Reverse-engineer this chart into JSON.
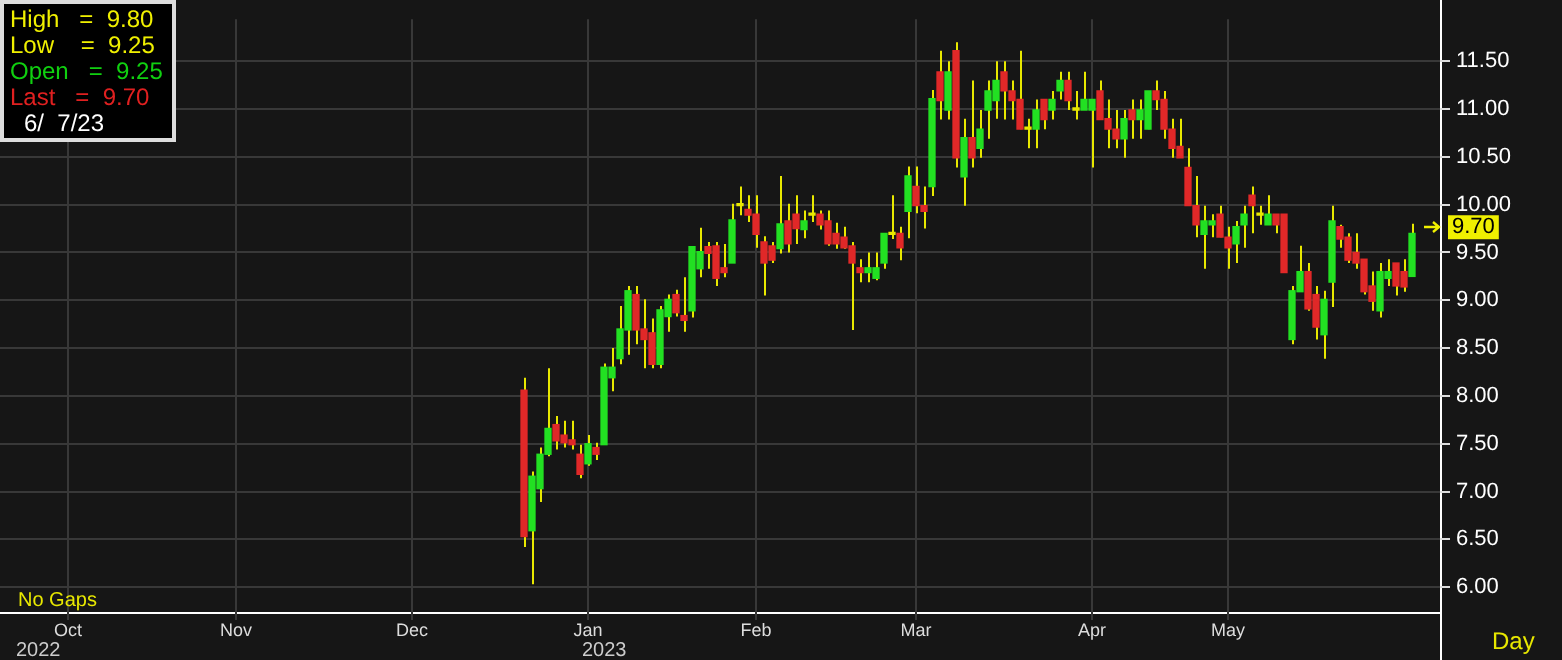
{
  "chart_data": {
    "type": "candlestick",
    "categories": [
      null,
      null,
      null,
      null,
      null,
      null,
      null,
      null,
      "Oct",
      null,
      null,
      null,
      null,
      null,
      null,
      null,
      null,
      null,
      null,
      null,
      null,
      null,
      null,
      null,
      null,
      null,
      null,
      null,
      null,
      "Nov",
      null,
      null,
      null,
      null,
      null,
      null,
      null,
      null,
      null,
      null,
      null,
      null,
      null,
      null,
      null,
      null,
      null,
      null,
      null,
      null,
      null,
      "Dec",
      null,
      null,
      null,
      null,
      null,
      null,
      null,
      null,
      null,
      null,
      null,
      null,
      null,
      null,
      null,
      null,
      null,
      null,
      null,
      null,
      null,
      "Jan",
      null,
      null,
      null,
      null,
      null,
      null,
      null,
      null,
      null,
      null,
      null,
      null,
      null,
      null,
      null,
      null,
      null,
      null,
      null,
      null,
      "Feb",
      null,
      null,
      null,
      null,
      null,
      null,
      null,
      null,
      null,
      null,
      null,
      null,
      null,
      null,
      null,
      null,
      null,
      null,
      null,
      "Mar",
      null,
      null,
      null,
      null,
      null,
      null,
      null,
      null,
      null,
      null,
      null,
      null,
      null,
      null,
      null,
      null,
      null,
      null,
      null,
      null,
      null,
      "Apr",
      null,
      null,
      null,
      null,
      null,
      null,
      null,
      null,
      null,
      null,
      null,
      null,
      null,
      null,
      null,
      null,
      "May",
      null,
      null,
      null,
      null,
      null,
      null,
      null,
      null,
      null,
      null,
      null,
      null,
      null,
      null,
      null,
      null,
      null,
      null,
      null,
      null,
      null,
      null,
      null,
      null,
      null,
      null
    ],
    "ohlc": [
      null,
      null,
      null,
      null,
      null,
      null,
      null,
      null,
      null,
      null,
      null,
      null,
      null,
      null,
      null,
      null,
      null,
      null,
      null,
      null,
      null,
      null,
      null,
      null,
      null,
      null,
      null,
      null,
      null,
      null,
      null,
      null,
      null,
      null,
      null,
      null,
      null,
      null,
      null,
      null,
      null,
      null,
      null,
      null,
      null,
      null,
      null,
      null,
      null,
      null,
      null,
      null,
      null,
      null,
      null,
      null,
      null,
      null,
      null,
      null,
      null,
      null,
      null,
      null,
      null,
      [
        8.06,
        8.19,
        6.42,
        6.53
      ],
      [
        6.59,
        7.21,
        6.03,
        7.16
      ],
      [
        7.03,
        7.46,
        6.89,
        7.39
      ],
      [
        7.39,
        8.29,
        7.37,
        7.66
      ],
      [
        7.7,
        7.79,
        7.44,
        7.53
      ],
      [
        7.59,
        7.74,
        7.46,
        7.51
      ],
      [
        7.54,
        7.74,
        7.44,
        7.49
      ],
      [
        7.39,
        7.49,
        7.14,
        7.18
      ],
      [
        7.29,
        7.59,
        7.27,
        7.5
      ],
      [
        7.46,
        7.51,
        7.33,
        7.39
      ],
      [
        7.49,
        8.34,
        7.49,
        8.3
      ],
      [
        8.19,
        8.5,
        8.05,
        8.3
      ],
      [
        8.39,
        8.94,
        8.33,
        8.7
      ],
      [
        8.69,
        9.15,
        8.43,
        9.1
      ],
      [
        9.06,
        9.15,
        8.54,
        8.69
      ],
      [
        8.7,
        9.01,
        8.29,
        8.59
      ],
      [
        8.66,
        8.81,
        8.29,
        8.33
      ],
      [
        8.33,
        8.94,
        8.29,
        8.9
      ],
      [
        8.83,
        9.06,
        8.67,
        9.01
      ],
      [
        9.06,
        9.11,
        8.83,
        8.87
      ],
      [
        8.84,
        9.24,
        8.67,
        8.79
      ],
      [
        8.89,
        9.56,
        8.82,
        9.56
      ],
      [
        9.33,
        9.76,
        9.24,
        9.51
      ],
      [
        9.56,
        9.61,
        9.33,
        9.49
      ],
      [
        9.57,
        9.61,
        9.15,
        9.23
      ],
      [
        9.34,
        9.59,
        9.24,
        9.29
      ],
      [
        9.39,
        10.01,
        9.39,
        9.84
      ],
      [
        9.99,
        10.19,
        9.89,
        9.99
      ],
      [
        9.95,
        10.1,
        9.82,
        9.89
      ],
      [
        9.9,
        10.1,
        9.55,
        9.69
      ],
      [
        9.61,
        9.67,
        9.05,
        9.39
      ],
      [
        9.57,
        9.61,
        9.39,
        9.42
      ],
      [
        9.54,
        10.3,
        9.49,
        9.8
      ],
      [
        9.83,
        10.01,
        9.5,
        9.59
      ],
      [
        9.9,
        10.1,
        9.59,
        9.75
      ],
      [
        9.74,
        9.94,
        9.65,
        9.83
      ],
      [
        9.89,
        10.1,
        9.82,
        9.89
      ],
      [
        9.9,
        9.94,
        9.74,
        9.79
      ],
      [
        9.83,
        9.94,
        9.57,
        9.59
      ],
      [
        9.7,
        9.81,
        9.54,
        9.59
      ],
      [
        9.66,
        9.77,
        9.54,
        9.55
      ],
      [
        9.57,
        9.61,
        8.69,
        9.39
      ],
      [
        9.34,
        9.43,
        9.19,
        9.29
      ],
      [
        9.29,
        9.5,
        9.19,
        9.34
      ],
      [
        9.23,
        9.5,
        9.21,
        9.34
      ],
      [
        9.39,
        9.7,
        9.33,
        9.7
      ],
      [
        9.69,
        10.1,
        9.64,
        9.69
      ],
      [
        9.7,
        9.77,
        9.42,
        9.55
      ],
      [
        9.93,
        10.4,
        9.65,
        10.3
      ],
      [
        10.19,
        10.4,
        9.91,
        9.99
      ],
      [
        9.99,
        10.19,
        9.75,
        9.93
      ],
      [
        10.19,
        11.2,
        10.09,
        11.11
      ],
      [
        11.39,
        11.61,
        10.89,
        11.09
      ],
      [
        10.99,
        11.5,
        10.89,
        11.39
      ],
      [
        11.61,
        11.7,
        10.39,
        10.49
      ],
      [
        10.29,
        10.9,
        9.99,
        10.7
      ],
      [
        10.7,
        11.3,
        10.39,
        10.49
      ],
      [
        10.59,
        10.99,
        10.49,
        10.79
      ],
      [
        10.99,
        11.3,
        10.69,
        11.19
      ],
      [
        11.09,
        11.5,
        10.9,
        11.3
      ],
      [
        11.39,
        11.5,
        10.89,
        11.19
      ],
      [
        11.19,
        11.3,
        10.89,
        11.09
      ],
      [
        11.1,
        11.61,
        10.79,
        10.79
      ],
      [
        10.79,
        10.9,
        10.59,
        10.79
      ],
      [
        10.79,
        11.1,
        10.59,
        10.99
      ],
      [
        11.1,
        11.1,
        10.79,
        10.89
      ],
      [
        10.99,
        11.19,
        10.89,
        11.1
      ],
      [
        11.19,
        11.39,
        11.1,
        11.3
      ],
      [
        11.3,
        11.39,
        10.99,
        11.09
      ],
      [
        10.99,
        11.19,
        10.89,
        10.99
      ],
      [
        10.99,
        11.39,
        10.99,
        11.1
      ],
      [
        10.99,
        11.1,
        10.39,
        11.1
      ],
      [
        11.19,
        11.3,
        10.89,
        10.89
      ],
      [
        10.9,
        11.1,
        10.59,
        10.79
      ],
      [
        10.79,
        10.99,
        10.59,
        10.69
      ],
      [
        10.69,
        10.99,
        10.49,
        10.9
      ],
      [
        10.99,
        11.1,
        10.69,
        10.89
      ],
      [
        10.89,
        11.1,
        10.69,
        10.99
      ],
      [
        10.79,
        11.19,
        10.79,
        11.19
      ],
      [
        11.19,
        11.3,
        10.99,
        11.1
      ],
      [
        11.1,
        11.19,
        10.69,
        10.79
      ],
      [
        10.79,
        10.9,
        10.49,
        10.59
      ],
      [
        10.61,
        10.9,
        10.49,
        10.49
      ],
      [
        10.39,
        10.59,
        9.99,
        9.99
      ],
      [
        9.99,
        10.3,
        9.66,
        9.79
      ],
      [
        9.69,
        9.99,
        9.33,
        9.83
      ],
      [
        9.79,
        9.9,
        9.66,
        9.83
      ],
      [
        9.9,
        9.99,
        9.66,
        9.66
      ],
      [
        9.66,
        9.77,
        9.33,
        9.55
      ],
      [
        9.59,
        9.83,
        9.39,
        9.77
      ],
      [
        9.79,
        9.99,
        9.55,
        9.9
      ],
      [
        10.1,
        10.19,
        9.7,
        9.99
      ],
      [
        9.89,
        9.99,
        9.79,
        9.89
      ],
      [
        9.79,
        10.1,
        9.79,
        9.9
      ],
      [
        9.9,
        9.9,
        9.7,
        9.79
      ],
      [
        9.9,
        9.9,
        9.29,
        9.29
      ],
      [
        8.59,
        9.15,
        8.54,
        9.1
      ],
      [
        9.09,
        9.57,
        9.09,
        9.3
      ],
      [
        9.3,
        9.39,
        8.89,
        8.91
      ],
      [
        9.06,
        9.15,
        8.59,
        8.72
      ],
      [
        8.64,
        9.1,
        8.39,
        9.01
      ],
      [
        9.19,
        9.99,
        8.93,
        9.83
      ],
      [
        9.77,
        9.79,
        9.55,
        9.64
      ],
      [
        9.66,
        9.7,
        9.39,
        9.42
      ],
      [
        9.5,
        9.7,
        9.33,
        9.39
      ],
      [
        9.43,
        9.43,
        9.06,
        9.09
      ],
      [
        9.15,
        9.3,
        8.89,
        8.99
      ],
      [
        8.89,
        9.39,
        8.82,
        9.3
      ],
      [
        9.23,
        9.43,
        9.15,
        9.3
      ],
      [
        9.39,
        9.39,
        9.05,
        9.15
      ],
      [
        9.3,
        9.43,
        9.09,
        9.14
      ],
      [
        9.25,
        9.8,
        9.25,
        9.7
      ],
      null,
      null,
      null
    ],
    "ylim": [
      5.74,
      11.94
    ],
    "yticks": [
      {
        "value": 6,
        "label": "6.00"
      },
      {
        "value": 6.5,
        "label": "6.50"
      },
      {
        "value": 7,
        "label": "7.00"
      },
      {
        "value": 7.5,
        "label": "7.50"
      },
      {
        "value": 8,
        "label": "8.00"
      },
      {
        "value": 8.5,
        "label": "8.50"
      },
      {
        "value": 9,
        "label": "9.00"
      },
      {
        "value": 9.5,
        "label": "9.50"
      },
      {
        "value": 10,
        "label": "10.00"
      },
      {
        "value": 10.5,
        "label": "10.50"
      },
      {
        "value": 11,
        "label": "11.00"
      },
      {
        "value": 11.5,
        "label": "11.50"
      }
    ],
    "grid": true,
    "annotations": [
      "High   =  9.80",
      "Low    =  9.25",
      "Open   =  9.25",
      "Last   =  9.70",
      "6/  7/23",
      "No Gaps",
      "Day",
      "2022",
      "2023",
      "9.70"
    ]
  }
}
